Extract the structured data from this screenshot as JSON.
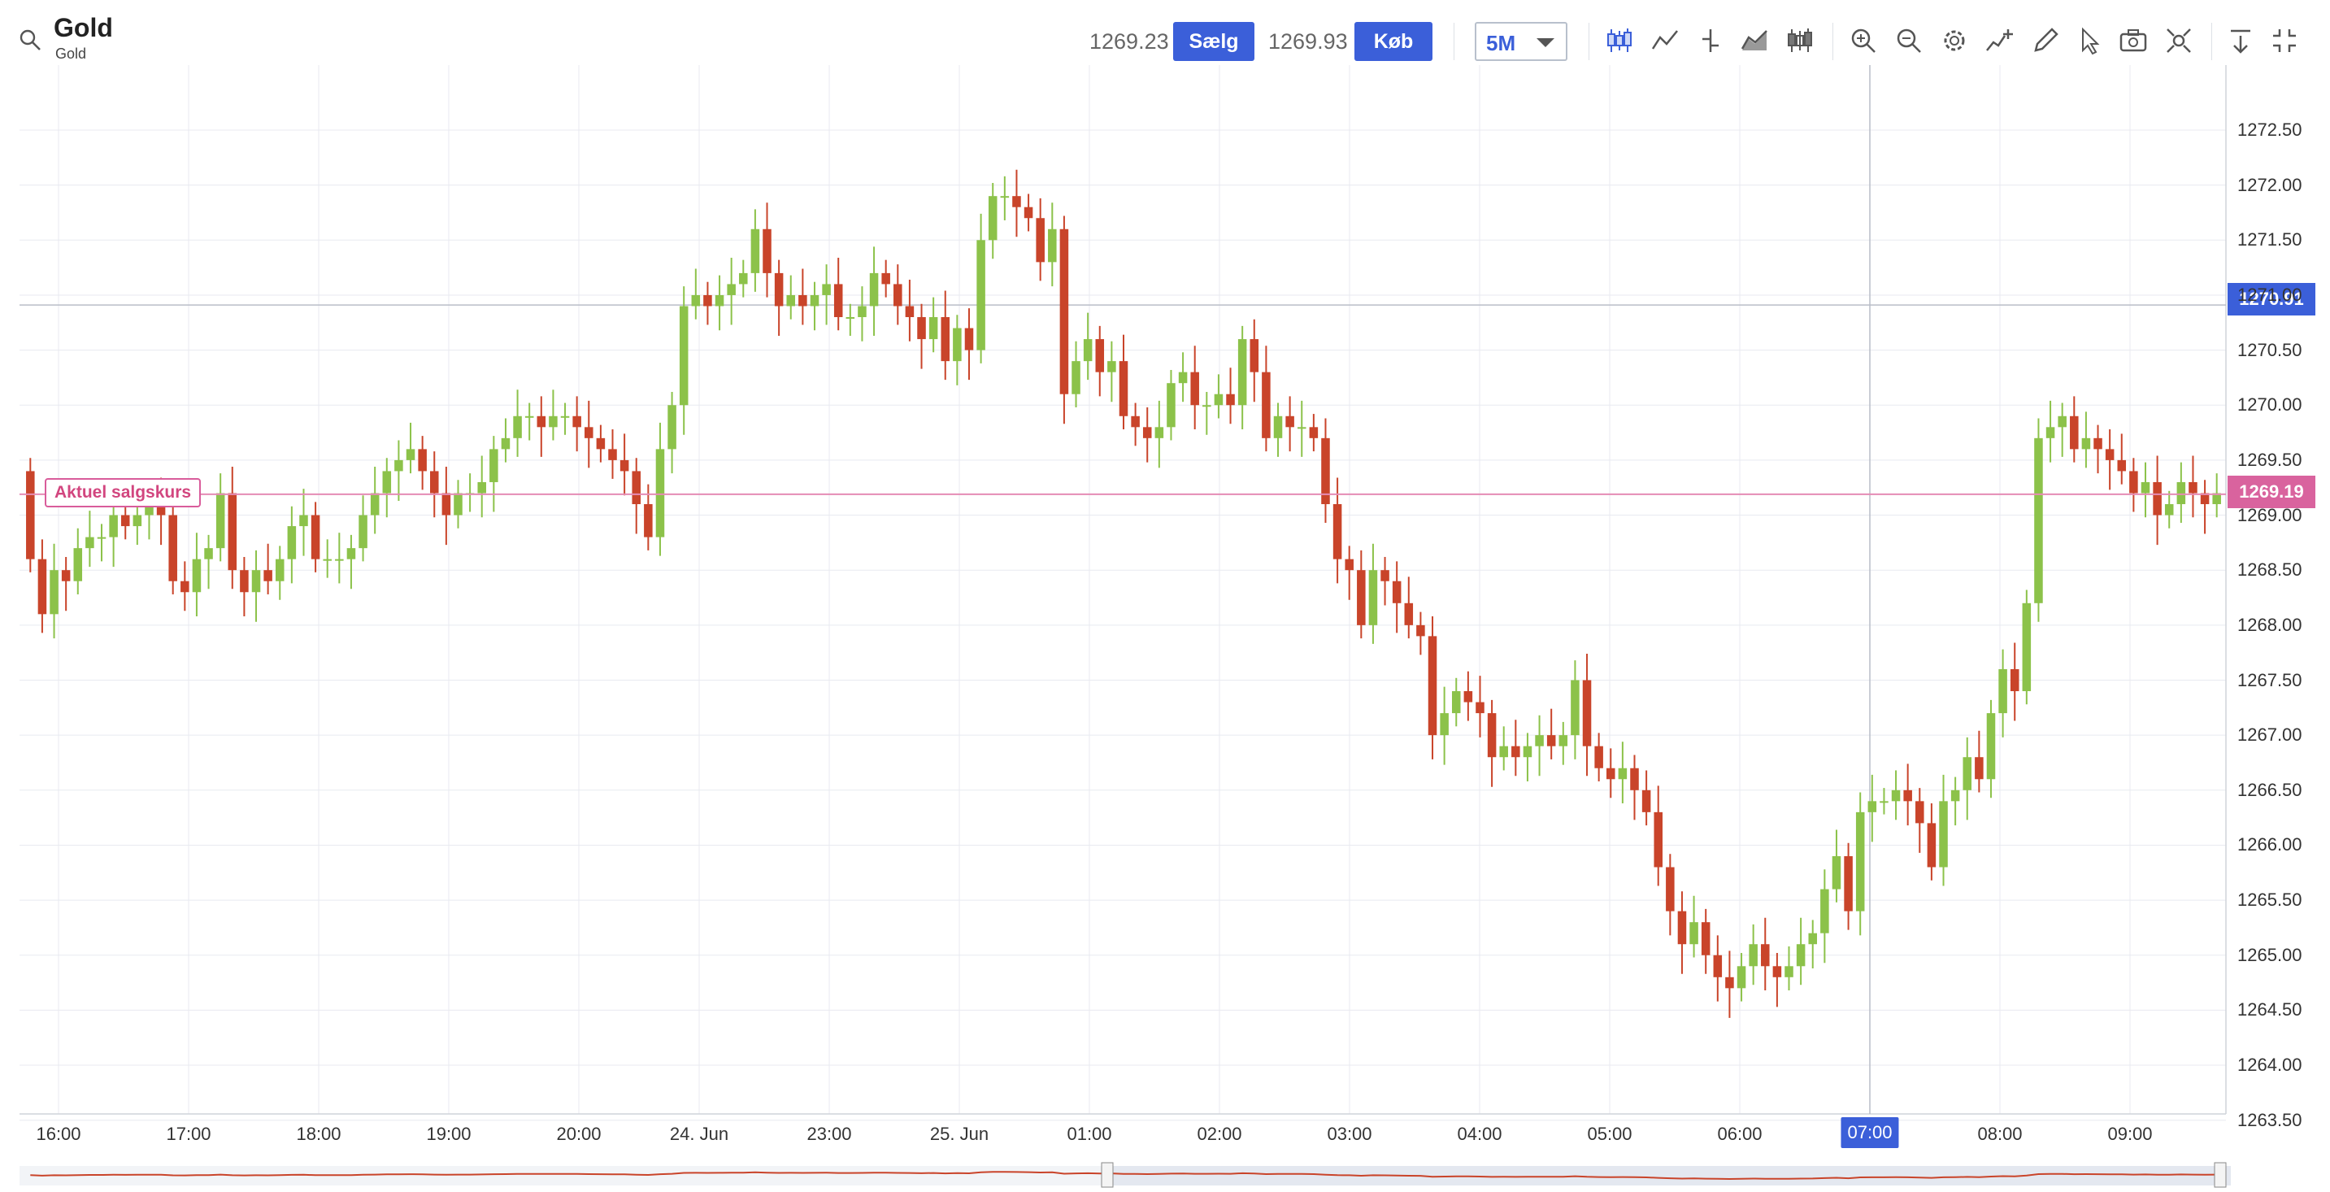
{
  "header": {
    "title": "Gold",
    "subtitle": "Gold",
    "sell_price": "1269.23",
    "sell_label": "Sælg",
    "buy_price": "1269.93",
    "buy_label": "Køb",
    "timeframe": "5M"
  },
  "toolbar": {
    "icons": [
      "candlestick-icon",
      "line-chart-icon",
      "ohlc-bar-icon",
      "area-chart-icon",
      "hollow-candle-icon",
      "zoom-in-icon",
      "zoom-out-icon",
      "settings-gear-icon",
      "indicator-add-icon",
      "pencil-draw-icon",
      "cursor-pointer-icon",
      "camera-snapshot-icon",
      "crosshair-icon",
      "download-icon",
      "fullscreen-collapse-icon"
    ]
  },
  "chart": {
    "current_sell_label": "Aktuel salgskurs",
    "current_sell_value": "1269.19",
    "crosshair_value": "1270.91",
    "highlighted_time": "07:00",
    "colors": {
      "up": "#8cc24a",
      "down": "#c9442a",
      "sell_line": "#e58cb5",
      "accent": "#3b5fd9"
    }
  },
  "chart_data": {
    "type": "candlestick",
    "interval": "5M",
    "ylim": [
      1263.5,
      1272.75
    ],
    "y_ticks": [
      "1272.50",
      "1272.00",
      "1271.50",
      "1271.00",
      "1270.50",
      "1270.00",
      "1269.50",
      "1269.00",
      "1268.50",
      "1268.00",
      "1267.50",
      "1267.00",
      "1266.50",
      "1266.00",
      "1265.50",
      "1265.00",
      "1264.50",
      "1264.00",
      "1263.50"
    ],
    "x_ticks": [
      "16:00",
      "17:00",
      "18:00",
      "19:00",
      "20:00",
      "24. Jun",
      "23:00",
      "25. Jun",
      "01:00",
      "02:00",
      "03:00",
      "04:00",
      "05:00",
      "06:00",
      "07:00",
      "08:00",
      "09:00"
    ],
    "close": [
      1268.6,
      1268.1,
      1268.5,
      1268.4,
      1268.7,
      1268.8,
      1268.8,
      1269.0,
      1268.9,
      1269.0,
      1269.1,
      1269.0,
      1268.4,
      1268.3,
      1268.6,
      1268.7,
      1269.2,
      1268.5,
      1268.3,
      1268.5,
      1268.4,
      1268.6,
      1268.9,
      1269.0,
      1268.6,
      1268.6,
      1268.6,
      1268.7,
      1269.0,
      1269.2,
      1269.4,
      1269.5,
      1269.6,
      1269.4,
      1269.2,
      1269.0,
      1269.2,
      1269.2,
      1269.3,
      1269.6,
      1269.7,
      1269.9,
      1269.9,
      1269.8,
      1269.9,
      1269.9,
      1269.8,
      1269.7,
      1269.6,
      1269.5,
      1269.4,
      1269.1,
      1268.8,
      1269.6,
      1270.0,
      1270.9,
      1271.0,
      1270.9,
      1271.0,
      1271.1,
      1271.2,
      1271.6,
      1271.2,
      1270.9,
      1271.0,
      1270.9,
      1271.0,
      1271.1,
      1270.8,
      1270.8,
      1270.9,
      1271.2,
      1271.1,
      1270.9,
      1270.8,
      1270.6,
      1270.8,
      1270.4,
      1270.7,
      1270.5,
      1271.5,
      1271.9,
      1271.9,
      1271.8,
      1271.7,
      1271.3,
      1271.6,
      1270.1,
      1270.4,
      1270.6,
      1270.3,
      1270.4,
      1269.9,
      1269.8,
      1269.7,
      1269.8,
      1270.2,
      1270.3,
      1270.0,
      1270.0,
      1270.1,
      1270.0,
      1270.6,
      1270.3,
      1269.7,
      1269.9,
      1269.8,
      1269.8,
      1269.7,
      1269.1,
      1268.6,
      1268.5,
      1268.0,
      1268.5,
      1268.4,
      1268.2,
      1268.0,
      1267.9,
      1267.0,
      1267.2,
      1267.4,
      1267.3,
      1267.2,
      1266.8,
      1266.9,
      1266.8,
      1266.9,
      1267.0,
      1266.9,
      1267.0,
      1267.5,
      1266.9,
      1266.7,
      1266.6,
      1266.7,
      1266.5,
      1266.3,
      1265.8,
      1265.4,
      1265.1,
      1265.3,
      1265.0,
      1264.8,
      1264.7,
      1264.9,
      1265.1,
      1264.9,
      1264.8,
      1264.9,
      1265.1,
      1265.2,
      1265.6,
      1265.9,
      1265.4,
      1266.3,
      1266.4,
      1266.4,
      1266.5,
      1266.4,
      1266.2,
      1265.8,
      1266.4,
      1266.5,
      1266.8,
      1266.6,
      1267.2,
      1267.6,
      1267.4,
      1268.2,
      1269.7,
      1269.8,
      1269.9,
      1269.6,
      1269.7,
      1269.6,
      1269.5,
      1269.4,
      1269.2,
      1269.3,
      1269.0,
      1269.1,
      1269.3,
      1269.2,
      1269.1,
      1269.2
    ]
  },
  "navigator": {
    "label": "range-navigator"
  }
}
